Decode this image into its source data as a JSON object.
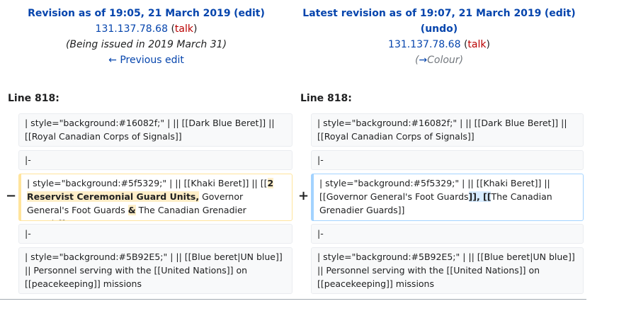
{
  "left_header": {
    "title": "Revision as of 19:05, 21 March 2019",
    "edit": "edit",
    "user": "131.137.78.68",
    "talk": "talk",
    "summary": "(Being issued in 2019 March 31)",
    "prev_link": "← Previous edit"
  },
  "right_header": {
    "title": "Latest revision as of 19:07, 21 March 2019",
    "edit": "edit",
    "undo": "undo",
    "user": "131.137.78.68",
    "talk": "talk",
    "summary_arrow": "→",
    "summary_section": "Colour"
  },
  "line_label": "Line 818:",
  "markers": {
    "minus": "−",
    "plus": "+"
  },
  "rows": {
    "r1_left": "| style=\"background:#16082f;\" | || [[Dark Blue Beret]] || [[Royal Canadian Corps of Signals]]",
    "r1_right": "| style=\"background:#16082f;\" | || [[Dark Blue Beret]] || [[Royal Canadian Corps of Signals]]",
    "r2_left": "|-",
    "r2_right": "|-",
    "r3_left": {
      "a": "| style=\"background:#5f5329;\" | || [[Khaki Beret]] || [[",
      "b": "2 Reservist Ceremonial Guard Units,",
      "c": " Governor General's Foot Guards ",
      "d": "&",
      "e": " The Canadian Grenadier Guards]]"
    },
    "r3_right": {
      "a": "| style=\"background:#5f5329;\" | || [[Khaki Beret]] || [[Governor General's Foot Guards",
      "b": "]], [[",
      "c": "The Canadian Grenadier Guards]]"
    },
    "r4_left": "|-",
    "r4_right": "|-",
    "r5_left": "| style=\"background:#5B92E5;\" | || [[Blue beret|UN blue]] || Personnel serving with the [[United Nations]] on [[peacekeeping]] missions",
    "r5_right": "| style=\"background:#5B92E5;\" | || [[Blue beret|UN blue]] || Personnel serving with the [[United Nations]] on [[peacekeeping]] missions"
  }
}
